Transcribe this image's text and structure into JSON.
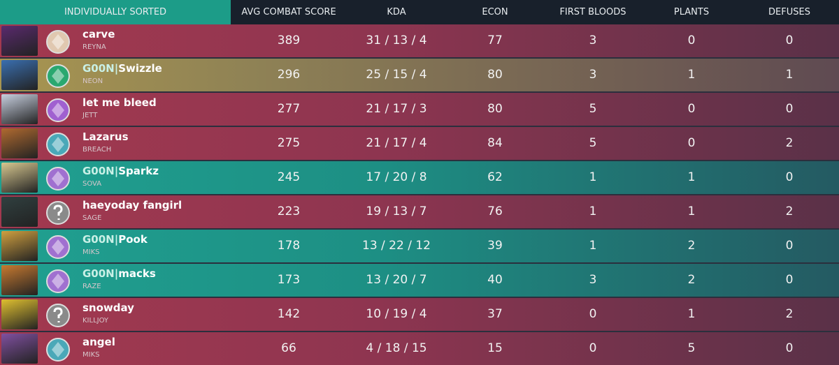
{
  "header": {
    "title": "INDIVIDUALLY SORTED",
    "columns": [
      "AVG COMBAT SCORE",
      "KDA",
      "ECON",
      "FIRST BLOODS",
      "PLANTS",
      "DEFUSES"
    ]
  },
  "players": [
    {
      "name": "carve",
      "agent": "REYNA",
      "stats": [
        389,
        "31 / 13 / 4",
        77,
        3,
        0,
        0
      ]
    },
    {
      "tag": "G00N",
      "name": "Swizzle",
      "agent": "NEON",
      "stats": [
        296,
        "25 / 15 / 4",
        80,
        3,
        1,
        1
      ]
    },
    {
      "name": "let me bleed",
      "agent": "JETT",
      "stats": [
        277,
        "21 / 17 / 3",
        80,
        5,
        0,
        0
      ]
    },
    {
      "name": "Lazarus",
      "agent": "BREACH",
      "stats": [
        275,
        "21 / 17 / 4",
        84,
        5,
        0,
        2
      ]
    },
    {
      "tag": "G00N",
      "name": "Sparkz",
      "agent": "SOVA",
      "stats": [
        245,
        "17 / 20 / 8",
        62,
        1,
        1,
        0
      ]
    },
    {
      "name": "haeyoday fangirl",
      "agent": "SAGE",
      "stats": [
        223,
        "19 / 13 / 7",
        76,
        1,
        1,
        2
      ]
    },
    {
      "tag": "G00N",
      "name": "Pook",
      "agent": "MIKS",
      "stats": [
        178,
        "13 / 22 / 12",
        39,
        1,
        2,
        0
      ]
    },
    {
      "tag": "G00N",
      "name": "macks",
      "agent": "RAZE",
      "stats": [
        173,
        "13 / 20 / 7",
        40,
        3,
        2,
        0
      ]
    },
    {
      "name": "snowday",
      "agent": "KILLJOY",
      "stats": [
        142,
        "10 / 19 / 4",
        37,
        0,
        1,
        2
      ]
    },
    {
      "name": "angel",
      "agent": "MIKS",
      "stats": [
        66,
        "4 / 18 / 15",
        15,
        0,
        5,
        0
      ]
    }
  ]
}
